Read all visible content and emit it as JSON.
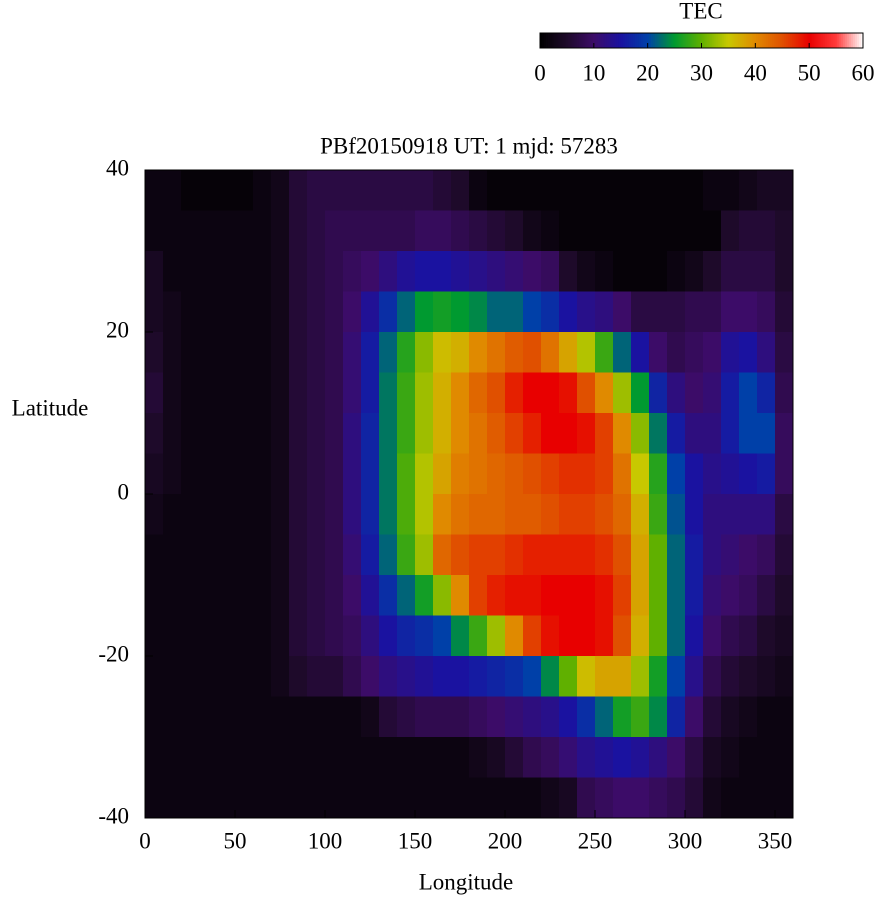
{
  "chart_data": {
    "type": "heatmap",
    "title": "PBf20150918  UT: 1  mjd: 57283",
    "xlabel": "Longitude",
    "ylabel": "Latitude",
    "colorbar_label": "TEC",
    "xlim": [
      0,
      360
    ],
    "xticks": [
      0,
      50,
      100,
      150,
      200,
      250,
      300,
      350
    ],
    "ylim": [
      -40,
      40
    ],
    "yticks": [
      -40,
      -20,
      0,
      20,
      40
    ],
    "clim": [
      0,
      60
    ],
    "cticks": [
      0,
      10,
      20,
      30,
      40,
      50,
      60
    ],
    "colormap": [
      "#000000",
      "#1e0a2a",
      "#3c0c68",
      "#1a12a0",
      "#0040a8",
      "#009a30",
      "#60b000",
      "#c8c800",
      "#e08a00",
      "#e05000",
      "#e80000",
      "#ff3a3a",
      "#ffffff"
    ],
    "x": [
      5,
      15,
      25,
      35,
      45,
      55,
      65,
      75,
      85,
      95,
      105,
      115,
      125,
      135,
      145,
      155,
      165,
      175,
      185,
      195,
      205,
      215,
      225,
      235,
      245,
      255,
      265,
      275,
      285,
      295,
      305,
      315,
      325,
      335,
      345,
      355
    ],
    "y": [
      37.5,
      32.5,
      27.5,
      22.5,
      17.5,
      12.5,
      7.5,
      2.5,
      -2.5,
      -7.5,
      -12.5,
      -17.5,
      -22.5,
      -27.5,
      -32.5,
      -37.5
    ],
    "z": [
      [
        2,
        2,
        1,
        1,
        1,
        1,
        2,
        3,
        6,
        7,
        7,
        7,
        7,
        7,
        7,
        7,
        6,
        5,
        2,
        1,
        1,
        1,
        1,
        1,
        1,
        1,
        1,
        1,
        1,
        1,
        1,
        2,
        2,
        3,
        4,
        4
      ],
      [
        2,
        2,
        2,
        2,
        2,
        2,
        2,
        3,
        6,
        7,
        8,
        8,
        8,
        8,
        8,
        9,
        9,
        8,
        7,
        6,
        5,
        3,
        2,
        1,
        1,
        1,
        1,
        1,
        1,
        1,
        1,
        1,
        5,
        6,
        6,
        5
      ],
      [
        4,
        2,
        2,
        2,
        2,
        2,
        2,
        3,
        6,
        7,
        8,
        9,
        10,
        12,
        14,
        15,
        15,
        14,
        13,
        12,
        11,
        10,
        9,
        5,
        3,
        2,
        1,
        1,
        1,
        2,
        3,
        5,
        7,
        7,
        7,
        5
      ],
      [
        4,
        3,
        2,
        2,
        2,
        2,
        2,
        3,
        6,
        7,
        8,
        10,
        14,
        18,
        22,
        25,
        26,
        25,
        24,
        22,
        22,
        20,
        18,
        15,
        13,
        12,
        10,
        7,
        7,
        7,
        8,
        8,
        10,
        10,
        9,
        6
      ],
      [
        5,
        3,
        2,
        2,
        2,
        2,
        2,
        3,
        6,
        7,
        8,
        11,
        16,
        22,
        27,
        32,
        36,
        37,
        40,
        42,
        44,
        45,
        42,
        38,
        34,
        28,
        22,
        15,
        10,
        8,
        9,
        10,
        14,
        15,
        12,
        7
      ],
      [
        6,
        3,
        2,
        2,
        2,
        2,
        2,
        3,
        6,
        7,
        8,
        11,
        16,
        23,
        28,
        33,
        37,
        40,
        43,
        45,
        48,
        50,
        50,
        49,
        45,
        40,
        33,
        25,
        17,
        12,
        10,
        11,
        16,
        20,
        17,
        8
      ],
      [
        5,
        3,
        2,
        2,
        2,
        2,
        2,
        3,
        6,
        7,
        8,
        12,
        17,
        23,
        28,
        33,
        37,
        40,
        42,
        44,
        46,
        48,
        50,
        50,
        49,
        46,
        40,
        32,
        23,
        16,
        12,
        12,
        16,
        20,
        20,
        9
      ],
      [
        4,
        3,
        2,
        2,
        2,
        2,
        2,
        3,
        6,
        7,
        8,
        12,
        17,
        23,
        29,
        34,
        38,
        41,
        42,
        43,
        44,
        45,
        46,
        47,
        47,
        46,
        42,
        35,
        27,
        20,
        15,
        13,
        14,
        15,
        16,
        9
      ],
      [
        3,
        2,
        2,
        2,
        2,
        2,
        2,
        3,
        6,
        7,
        8,
        12,
        17,
        23,
        29,
        34,
        40,
        42,
        43,
        43,
        44,
        44,
        45,
        46,
        46,
        45,
        43,
        37,
        28,
        21,
        15,
        12,
        12,
        12,
        12,
        7
      ],
      [
        2,
        2,
        2,
        2,
        2,
        2,
        2,
        3,
        6,
        7,
        8,
        11,
        16,
        22,
        28,
        33,
        43,
        45,
        46,
        46,
        47,
        48,
        48,
        48,
        48,
        47,
        45,
        38,
        30,
        22,
        16,
        12,
        11,
        10,
        9,
        6
      ],
      [
        2,
        2,
        2,
        2,
        2,
        2,
        2,
        3,
        6,
        7,
        8,
        10,
        14,
        18,
        22,
        26,
        32,
        40,
        46,
        48,
        49,
        49,
        50,
        50,
        50,
        49,
        46,
        38,
        30,
        22,
        16,
        11,
        10,
        9,
        7,
        5
      ],
      [
        2,
        2,
        2,
        2,
        2,
        2,
        2,
        3,
        6,
        7,
        8,
        9,
        12,
        15,
        17,
        18,
        20,
        24,
        28,
        33,
        40,
        46,
        49,
        50,
        50,
        49,
        45,
        37,
        30,
        22,
        15,
        10,
        8,
        7,
        5,
        4
      ],
      [
        2,
        2,
        2,
        2,
        2,
        2,
        2,
        3,
        5,
        6,
        6,
        8,
        10,
        12,
        13,
        14,
        15,
        15,
        16,
        17,
        18,
        20,
        24,
        30,
        36,
        38,
        38,
        33,
        26,
        20,
        13,
        8,
        6,
        5,
        4,
        3
      ],
      [
        2,
        2,
        2,
        2,
        2,
        2,
        2,
        2,
        2,
        2,
        2,
        2,
        3,
        6,
        7,
        8,
        8,
        8,
        9,
        10,
        11,
        12,
        13,
        15,
        18,
        22,
        26,
        28,
        24,
        17,
        10,
        6,
        4,
        3,
        2,
        2
      ],
      [
        2,
        2,
        2,
        2,
        2,
        2,
        2,
        2,
        2,
        2,
        2,
        2,
        2,
        2,
        2,
        2,
        2,
        2,
        3,
        4,
        6,
        8,
        9,
        11,
        13,
        14,
        15,
        14,
        12,
        10,
        7,
        4,
        3,
        2,
        2,
        2
      ],
      [
        2,
        2,
        2,
        2,
        2,
        2,
        2,
        2,
        2,
        2,
        2,
        2,
        2,
        2,
        2,
        2,
        2,
        2,
        2,
        2,
        2,
        2,
        3,
        4,
        8,
        9,
        10,
        10,
        9,
        8,
        6,
        3,
        2,
        2,
        2,
        2
      ]
    ]
  }
}
